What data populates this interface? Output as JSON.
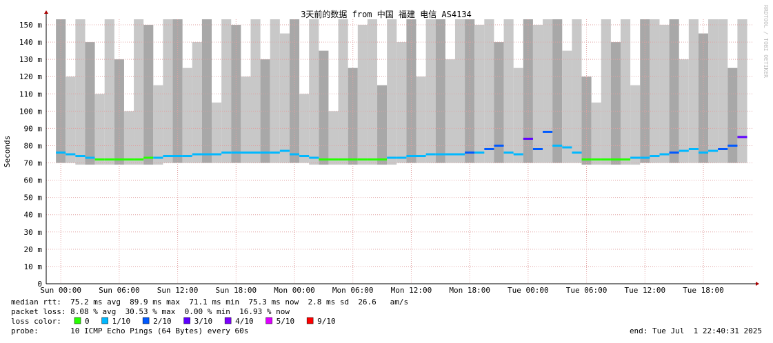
{
  "chart_data": {
    "type": "smokeping",
    "title": "3天前的数据 from 中国 福建 电信 AS4134",
    "y_label": "Seconds",
    "watermark": "RRDTOOL / TOBI OETIKER",
    "ylim": [
      0,
      153.2
    ],
    "yticks": [
      {
        "value": 0,
        "label": "0"
      },
      {
        "value": 10,
        "label": "10 m"
      },
      {
        "value": 20,
        "label": "20 m"
      },
      {
        "value": 30,
        "label": "30 m"
      },
      {
        "value": 40,
        "label": "40 m"
      },
      {
        "value": 50,
        "label": "50 m"
      },
      {
        "value": 60,
        "label": "60 m"
      },
      {
        "value": 70,
        "label": "70 m"
      },
      {
        "value": 80,
        "label": "80 m"
      },
      {
        "value": 90,
        "label": "90 m"
      },
      {
        "value": 100,
        "label": "100 m"
      },
      {
        "value": 110,
        "label": "110 m"
      },
      {
        "value": 120,
        "label": "120 m"
      },
      {
        "value": 130,
        "label": "130 m"
      },
      {
        "value": 140,
        "label": "140 m"
      },
      {
        "value": 150,
        "label": "150 m"
      }
    ],
    "xlim": [
      -1.5,
      71.1
    ],
    "xticks": [
      {
        "value": 0,
        "label": "Sun 00:00"
      },
      {
        "value": 6,
        "label": "Sun 06:00"
      },
      {
        "value": 12,
        "label": "Sun 12:00"
      },
      {
        "value": 18,
        "label": "Sun 18:00"
      },
      {
        "value": 24,
        "label": "Mon 00:00"
      },
      {
        "value": 30,
        "label": "Mon 06:00"
      },
      {
        "value": 36,
        "label": "Mon 12:00"
      },
      {
        "value": 42,
        "label": "Mon 18:00"
      },
      {
        "value": 48,
        "label": "Tue 00:00"
      },
      {
        "value": 54,
        "label": "Tue 06:00"
      },
      {
        "value": 60,
        "label": "Tue 12:00"
      },
      {
        "value": 66,
        "label": "Tue 18:00"
      }
    ],
    "grid": true,
    "x": [
      0,
      1,
      2,
      3,
      4,
      5,
      6,
      7,
      8,
      9,
      10,
      11,
      12,
      13,
      14,
      15,
      16,
      17,
      18,
      19,
      20,
      21,
      22,
      23,
      24,
      25,
      26,
      27,
      28,
      29,
      30,
      31,
      32,
      33,
      34,
      35,
      36,
      37,
      38,
      39,
      40,
      41,
      42,
      43,
      44,
      45,
      46,
      47,
      48,
      49,
      50,
      51,
      52,
      53,
      54,
      55,
      56,
      57,
      58,
      59,
      60,
      61,
      62,
      63,
      64,
      65,
      66,
      67,
      68,
      69,
      70
    ],
    "median": [
      76,
      75,
      74,
      73,
      72,
      72,
      72,
      72,
      72,
      73,
      73,
      74,
      74,
      74,
      75,
      75,
      75,
      76,
      76,
      76,
      76,
      76,
      76,
      77,
      75,
      74,
      73,
      72,
      72,
      72,
      72,
      72,
      72,
      72,
      73,
      73,
      74,
      74,
      75,
      75,
      75,
      75,
      76,
      76,
      78,
      80,
      76,
      75,
      84,
      78,
      88,
      80,
      79,
      76,
      72,
      72,
      72,
      72,
      72,
      73,
      73,
      74,
      75,
      76,
      77,
      78,
      76,
      77,
      78,
      80,
      85
    ],
    "loss": [
      1,
      1,
      1,
      1,
      0,
      0,
      0,
      0,
      0,
      0,
      1,
      1,
      1,
      1,
      1,
      1,
      1,
      1,
      1,
      1,
      1,
      1,
      1,
      1,
      1,
      1,
      1,
      0,
      0,
      0,
      0,
      0,
      0,
      0,
      1,
      1,
      1,
      1,
      1,
      1,
      1,
      1,
      2,
      1,
      2,
      2,
      1,
      1,
      3,
      2,
      2,
      1,
      1,
      1,
      0,
      0,
      0,
      0,
      0,
      1,
      1,
      1,
      1,
      2,
      1,
      1,
      1,
      1,
      2,
      2,
      3
    ],
    "smoke_min": [
      70,
      70,
      69,
      69,
      69,
      69,
      69,
      69,
      69,
      69,
      69,
      70,
      70,
      70,
      70,
      70,
      70,
      70,
      70,
      70,
      70,
      70,
      70,
      70,
      70,
      70,
      69,
      69,
      69,
      69,
      69,
      69,
      69,
      69,
      69,
      70,
      70,
      70,
      70,
      70,
      70,
      70,
      70,
      70,
      70,
      70,
      70,
      70,
      70,
      70,
      70,
      70,
      70,
      70,
      69,
      69,
      69,
      69,
      69,
      69,
      70,
      70,
      70,
      70,
      70,
      70,
      70,
      70,
      70,
      70,
      70
    ],
    "smoke_max": [
      160,
      120,
      160,
      140,
      110,
      160,
      130,
      100,
      160,
      150,
      115,
      160,
      160,
      125,
      140,
      160,
      105,
      160,
      150,
      120,
      160,
      130,
      160,
      145,
      160,
      110,
      160,
      135,
      100,
      160,
      125,
      150,
      160,
      115,
      160,
      140,
      160,
      120,
      160,
      155,
      130,
      160,
      160,
      150,
      160,
      140,
      160,
      125,
      160,
      150,
      160,
      160,
      135,
      160,
      120,
      105,
      160,
      140,
      160,
      115,
      160,
      160,
      150,
      160,
      130,
      160,
      145,
      160,
      160,
      125,
      160
    ],
    "loss_legend": [
      {
        "label": "0",
        "color": "#26ff00"
      },
      {
        "label": "1/10",
        "color": "#00b8ff"
      },
      {
        "label": "2/10",
        "color": "#0059ff"
      },
      {
        "label": "3/10",
        "color": "#5e00ff"
      },
      {
        "label": "4/10",
        "color": "#7e00ff"
      },
      {
        "label": "5/10",
        "color": "#dd00ff"
      },
      {
        "label": "9/10",
        "color": "#ff0000"
      }
    ],
    "footer": {
      "median_rtt": "median rtt:  75.2 ms avg  89.9 ms max  71.1 ms min  75.3 ms now  2.8 ms sd  26.6   am/s",
      "packet_loss": "packet loss: 8.08 % avg  30.53 % max  0.00 % min  16.93 % now",
      "loss_color": "loss color:",
      "probe": "probe:       10 ICMP Echo Pings (64 Bytes) every 60s",
      "end": "end: Tue Jul  1 22:40:31 2025"
    }
  }
}
